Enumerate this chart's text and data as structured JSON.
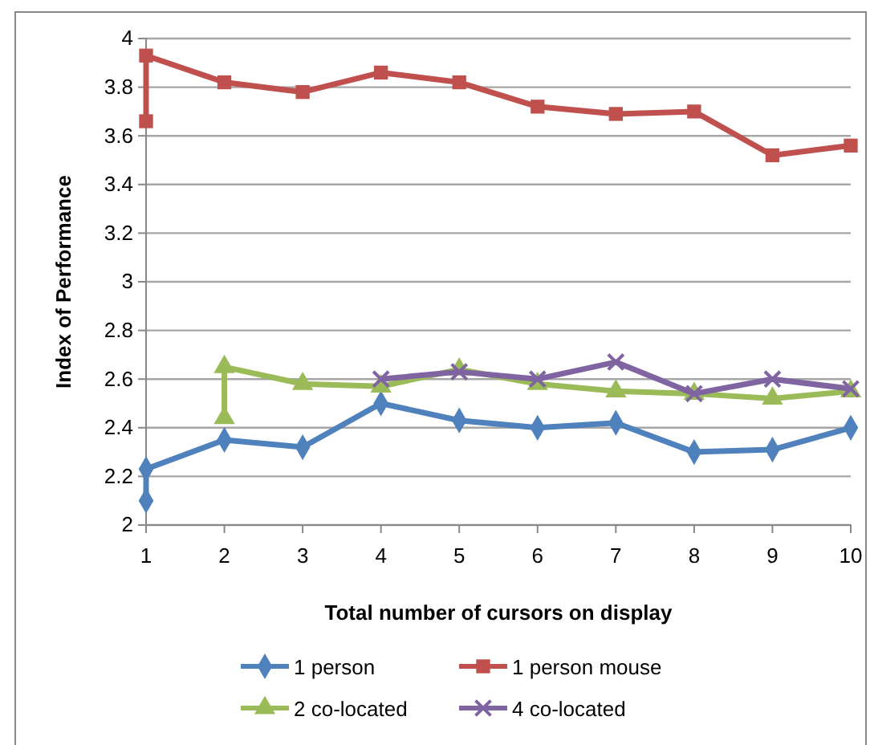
{
  "chart_data": {
    "type": "line",
    "xlabel": "Total number of cursors on display",
    "ylabel": "Index of Performance",
    "xlim": [
      1,
      10
    ],
    "xticks": [
      1,
      2,
      3,
      4,
      5,
      6,
      7,
      8,
      9,
      10
    ],
    "ylim": [
      2,
      4
    ],
    "yticks": [
      2,
      2.2,
      2.4,
      2.6,
      2.8,
      3,
      3.2,
      3.4,
      3.6,
      3.8,
      4
    ],
    "grid": "y",
    "legend": "bottom",
    "series": [
      {
        "name": "1 person",
        "color": "#4f81bd",
        "marker": "diamond",
        "x": [
          1,
          1,
          2,
          3,
          4,
          5,
          6,
          7,
          8,
          9,
          10
        ],
        "values": [
          2.1,
          2.23,
          2.35,
          2.32,
          2.5,
          2.43,
          2.4,
          2.42,
          2.3,
          2.31,
          2.4
        ]
      },
      {
        "name": "1 person mouse",
        "color": "#c0504d",
        "marker": "square",
        "x": [
          1,
          1,
          2,
          3,
          4,
          5,
          6,
          7,
          8,
          9,
          10
        ],
        "values": [
          3.66,
          3.93,
          3.82,
          3.78,
          3.86,
          3.82,
          3.72,
          3.69,
          3.7,
          3.52,
          3.56
        ]
      },
      {
        "name": "2 co-located",
        "color": "#9bbb59",
        "marker": "triangle",
        "x": [
          2,
          2,
          3,
          4,
          5,
          6,
          7,
          8,
          9,
          10
        ],
        "values": [
          2.44,
          2.65,
          2.58,
          2.57,
          2.64,
          2.58,
          2.55,
          2.54,
          2.52,
          2.55
        ]
      },
      {
        "name": "4 co-located",
        "color": "#8064a2",
        "marker": "cross",
        "x": [
          4,
          5,
          6,
          7,
          8,
          9,
          10
        ],
        "values": [
          2.6,
          2.63,
          2.6,
          2.67,
          2.54,
          2.6,
          2.56
        ]
      }
    ]
  }
}
